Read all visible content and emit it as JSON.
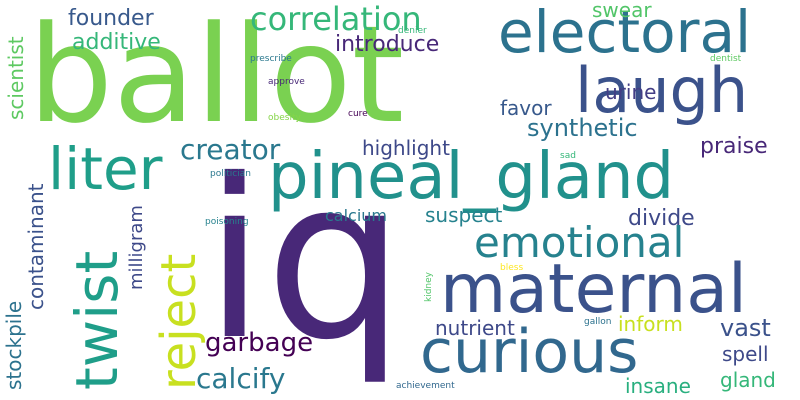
{
  "words": [
    {
      "text": "ballot",
      "color": "#7ad151"
    },
    {
      "text": "iq",
      "color": "#482878"
    },
    {
      "text": "pineal_gland",
      "color": "#21918c"
    },
    {
      "text": "maternal",
      "color": "#3b528b"
    },
    {
      "text": "curious",
      "color": "#31688e"
    },
    {
      "text": "electoral",
      "color": "#2c728e"
    },
    {
      "text": "laugh",
      "color": "#3b528b"
    },
    {
      "text": "emotional",
      "color": "#26828e"
    },
    {
      "text": "twist",
      "color": "#1f9e89"
    },
    {
      "text": "reject",
      "color": "#c8e020"
    },
    {
      "text": "liter",
      "color": "#1f9e89"
    },
    {
      "text": "correlation",
      "color": "#35b779"
    },
    {
      "text": "calcify",
      "color": "#2a788e"
    },
    {
      "text": "garbage",
      "color": "#440154"
    },
    {
      "text": "creator",
      "color": "#2a788e"
    },
    {
      "text": "synthetic",
      "color": "#2c728e"
    },
    {
      "text": "founder",
      "color": "#38598c"
    },
    {
      "text": "additive",
      "color": "#35b779"
    },
    {
      "text": "introduce",
      "color": "#482878"
    },
    {
      "text": "highlight",
      "color": "#3e4989"
    },
    {
      "text": "suspect",
      "color": "#26828e"
    },
    {
      "text": "nutrient",
      "color": "#3e4989"
    },
    {
      "text": "inform",
      "color": "#c8e020"
    },
    {
      "text": "vast",
      "color": "#3b528b"
    },
    {
      "text": "spell",
      "color": "#3e4989"
    },
    {
      "text": "gland",
      "color": "#35b779"
    },
    {
      "text": "insane",
      "color": "#29af7f"
    },
    {
      "text": "praise",
      "color": "#482878"
    },
    {
      "text": "divide",
      "color": "#3e4989"
    },
    {
      "text": "urine",
      "color": "#433e85"
    },
    {
      "text": "favor",
      "color": "#38598c"
    },
    {
      "text": "swear",
      "color": "#52c569"
    },
    {
      "text": "calcium",
      "color": "#2a788e"
    },
    {
      "text": "contaminant",
      "color": "#3b528b"
    },
    {
      "text": "scientist",
      "color": "#5ec962"
    },
    {
      "text": "stockpile",
      "color": "#2c728e"
    },
    {
      "text": "milligram",
      "color": "#3e4989"
    },
    {
      "text": "prescribe",
      "color": "#2a788e"
    },
    {
      "text": "approve",
      "color": "#482878"
    },
    {
      "text": "denier",
      "color": "#35b779"
    },
    {
      "text": "dentist",
      "color": "#5ec962"
    },
    {
      "text": "obesity",
      "color": "#86d549"
    },
    {
      "text": "cure",
      "color": "#440154"
    },
    {
      "text": "sad",
      "color": "#35b779"
    },
    {
      "text": "politician",
      "color": "#2a788e"
    },
    {
      "text": "poisoning",
      "color": "#26828e"
    },
    {
      "text": "bless",
      "color": "#fde725"
    },
    {
      "text": "kidney",
      "color": "#52c569"
    },
    {
      "text": "gallon",
      "color": "#2c728e"
    },
    {
      "text": "achievement",
      "color": "#31688e"
    }
  ]
}
